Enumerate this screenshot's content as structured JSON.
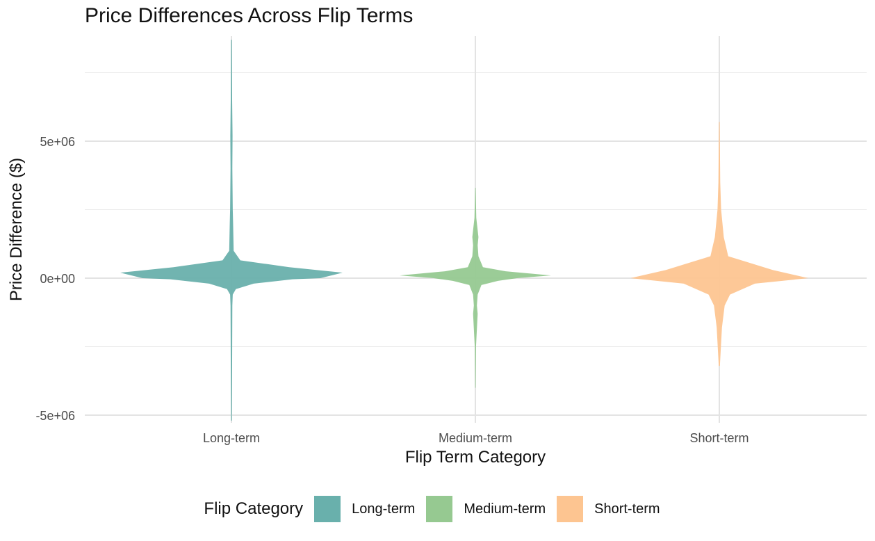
{
  "chart_data": {
    "type": "violin",
    "title": "Price Differences Across Flip Terms",
    "xlabel": "Flip Term Category",
    "ylabel": "Price Difference ($)",
    "categories": [
      "Long-term",
      "Medium-term",
      "Short-term"
    ],
    "ylim": [
      -5200000,
      8700000
    ],
    "y_ticks": [
      -5000000,
      0,
      5000000
    ],
    "y_tick_labels": [
      "-5e+06",
      "0e+00",
      "5e+06"
    ],
    "grid": true,
    "legend": {
      "title": "Flip Category",
      "position": "bottom",
      "entries": [
        "Long-term",
        "Medium-term",
        "Short-term"
      ]
    },
    "colors": [
      "#69b0ac",
      "#96c991",
      "#fdc591"
    ],
    "series": [
      {
        "category": "Long-term",
        "min": -5200000,
        "max": 8700000,
        "density_profile": [
          [
            -5200000,
            0.004
          ],
          [
            -3000000,
            0.006
          ],
          [
            -1000000,
            0.008
          ],
          [
            -600000,
            0.012
          ],
          [
            -400000,
            0.04
          ],
          [
            -200000,
            0.2
          ],
          [
            -40000,
            0.55
          ],
          [
            0,
            0.8
          ],
          [
            200000,
            1.0
          ],
          [
            400000,
            0.52
          ],
          [
            650000,
            0.08
          ],
          [
            1000000,
            0.02
          ],
          [
            2000000,
            0.015
          ],
          [
            2500000,
            0.012
          ],
          [
            4000000,
            0.008
          ],
          [
            5200000,
            0.01
          ],
          [
            6500000,
            0.006
          ],
          [
            8700000,
            0.004
          ]
        ]
      },
      {
        "category": "Medium-term",
        "min": -4000000,
        "max": 3300000,
        "density_profile": [
          [
            -4000000,
            0.004
          ],
          [
            -2500000,
            0.008
          ],
          [
            -1300000,
            0.03
          ],
          [
            -1000000,
            0.02
          ],
          [
            -600000,
            0.03
          ],
          [
            -250000,
            0.08
          ],
          [
            -100000,
            0.3
          ],
          [
            0,
            0.55
          ],
          [
            100000,
            1.0
          ],
          [
            250000,
            0.4
          ],
          [
            400000,
            0.1
          ],
          [
            800000,
            0.04
          ],
          [
            1200000,
            0.03
          ],
          [
            1500000,
            0.04
          ],
          [
            2200000,
            0.012
          ],
          [
            3300000,
            0.004
          ]
        ]
      },
      {
        "category": "Short-term",
        "min": -3200000,
        "max": 5700000,
        "density_profile": [
          [
            -3200000,
            0.006
          ],
          [
            -1800000,
            0.03
          ],
          [
            -1000000,
            0.06
          ],
          [
            -600000,
            0.12
          ],
          [
            -200000,
            0.4
          ],
          [
            0,
            1.0
          ],
          [
            300000,
            0.6
          ],
          [
            600000,
            0.3
          ],
          [
            800000,
            0.1
          ],
          [
            1500000,
            0.05
          ],
          [
            2500000,
            0.02
          ],
          [
            3500000,
            0.01
          ],
          [
            5700000,
            0.004
          ]
        ]
      }
    ]
  }
}
